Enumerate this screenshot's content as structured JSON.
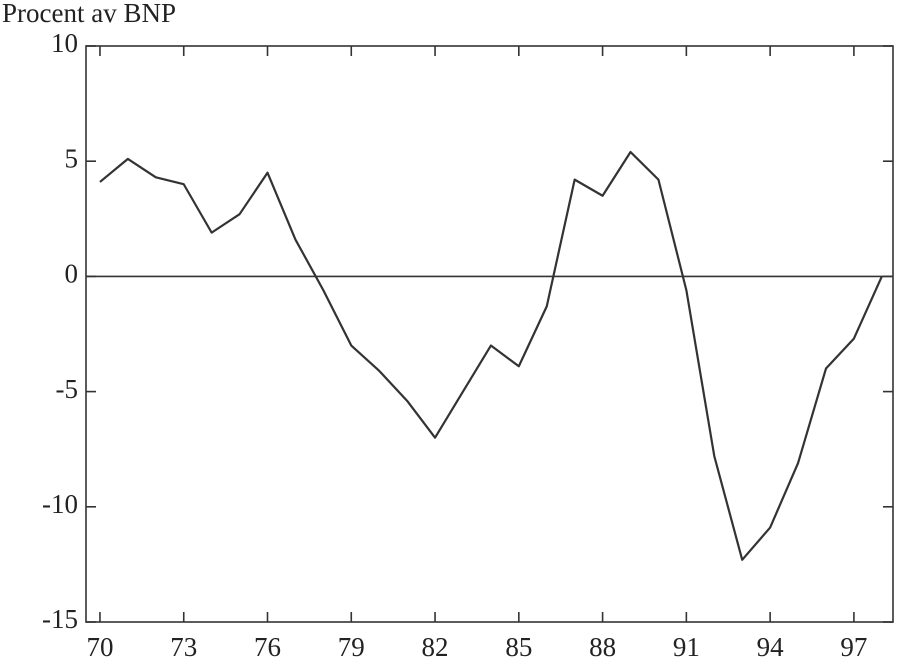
{
  "chart_data": {
    "type": "line",
    "y_label": "Procent av BNP",
    "x": [
      70,
      71,
      72,
      73,
      74,
      75,
      76,
      77,
      78,
      79,
      80,
      81,
      82,
      83,
      84,
      85,
      86,
      87,
      88,
      89,
      90,
      91,
      92,
      93,
      94,
      95,
      96,
      97,
      98
    ],
    "series": [
      {
        "color": "#333333",
        "values": [
          4.1,
          5.1,
          4.3,
          4.0,
          1.9,
          2.7,
          4.5,
          1.6,
          -0.6,
          -3.0,
          -4.1,
          -5.4,
          -7.0,
          -5.0,
          -3.0,
          -3.9,
          -1.3,
          4.2,
          3.5,
          5.4,
          4.2,
          -0.6,
          -7.8,
          -12.3,
          -10.9,
          -8.1,
          -4.0,
          -2.7,
          0.0
        ]
      }
    ],
    "xlim": [
      69.5,
      98.4
    ],
    "xticks": [
      70,
      73,
      76,
      79,
      82,
      85,
      88,
      91,
      94,
      97
    ],
    "ylim": [
      -15,
      10
    ],
    "yticks": [
      10,
      5,
      0,
      -5,
      -10,
      -15
    ],
    "zeroline": true,
    "grid": false
  }
}
